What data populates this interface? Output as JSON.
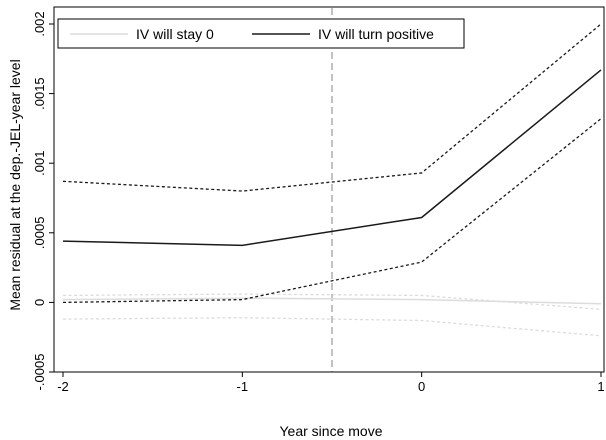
{
  "chart_data": {
    "type": "line",
    "title": "",
    "xlabel": "Year since move",
    "ylabel": "Mean residual at the dep.-JEL-year level",
    "x": [
      -2,
      -1,
      0,
      1
    ],
    "xlim": [
      -2,
      1
    ],
    "ylim": [
      -0.0005,
      0.002
    ],
    "xticks": [
      "-2",
      "-1",
      "0",
      "1"
    ],
    "yticks": [
      {
        "value": -0.0005,
        "label": "-.0005"
      },
      {
        "value": 0,
        "label": "0"
      },
      {
        "value": 0.0005,
        "label": ".0005"
      },
      {
        "value": 0.001,
        "label": ".001"
      },
      {
        "value": 0.0015,
        "label": ".0015"
      },
      {
        "value": 0.002,
        "label": ".002"
      }
    ],
    "grid": false,
    "legend_position": "top",
    "reference_line": {
      "x": -0.5,
      "style": "dashed",
      "color": "#a9a9a9"
    },
    "series": [
      {
        "name": "IV will stay 0",
        "color": "#dcdcdc",
        "values": [
          2e-05,
          3e-05,
          2e-05,
          -1e-05
        ],
        "ci_upper": [
          5e-05,
          6e-05,
          5e-05,
          -5e-05
        ],
        "ci_lower": [
          -0.00012,
          -0.00011,
          -0.00013,
          -0.00024
        ]
      },
      {
        "name": "IV will turn positive",
        "color": "#1a1a1a",
        "values": [
          0.00044,
          0.00041,
          0.00061,
          0.00167
        ],
        "ci_upper": [
          0.00087,
          0.0008,
          0.00093,
          0.002
        ],
        "ci_lower": [
          0.0,
          2e-05,
          0.00029,
          0.00132
        ]
      }
    ]
  }
}
